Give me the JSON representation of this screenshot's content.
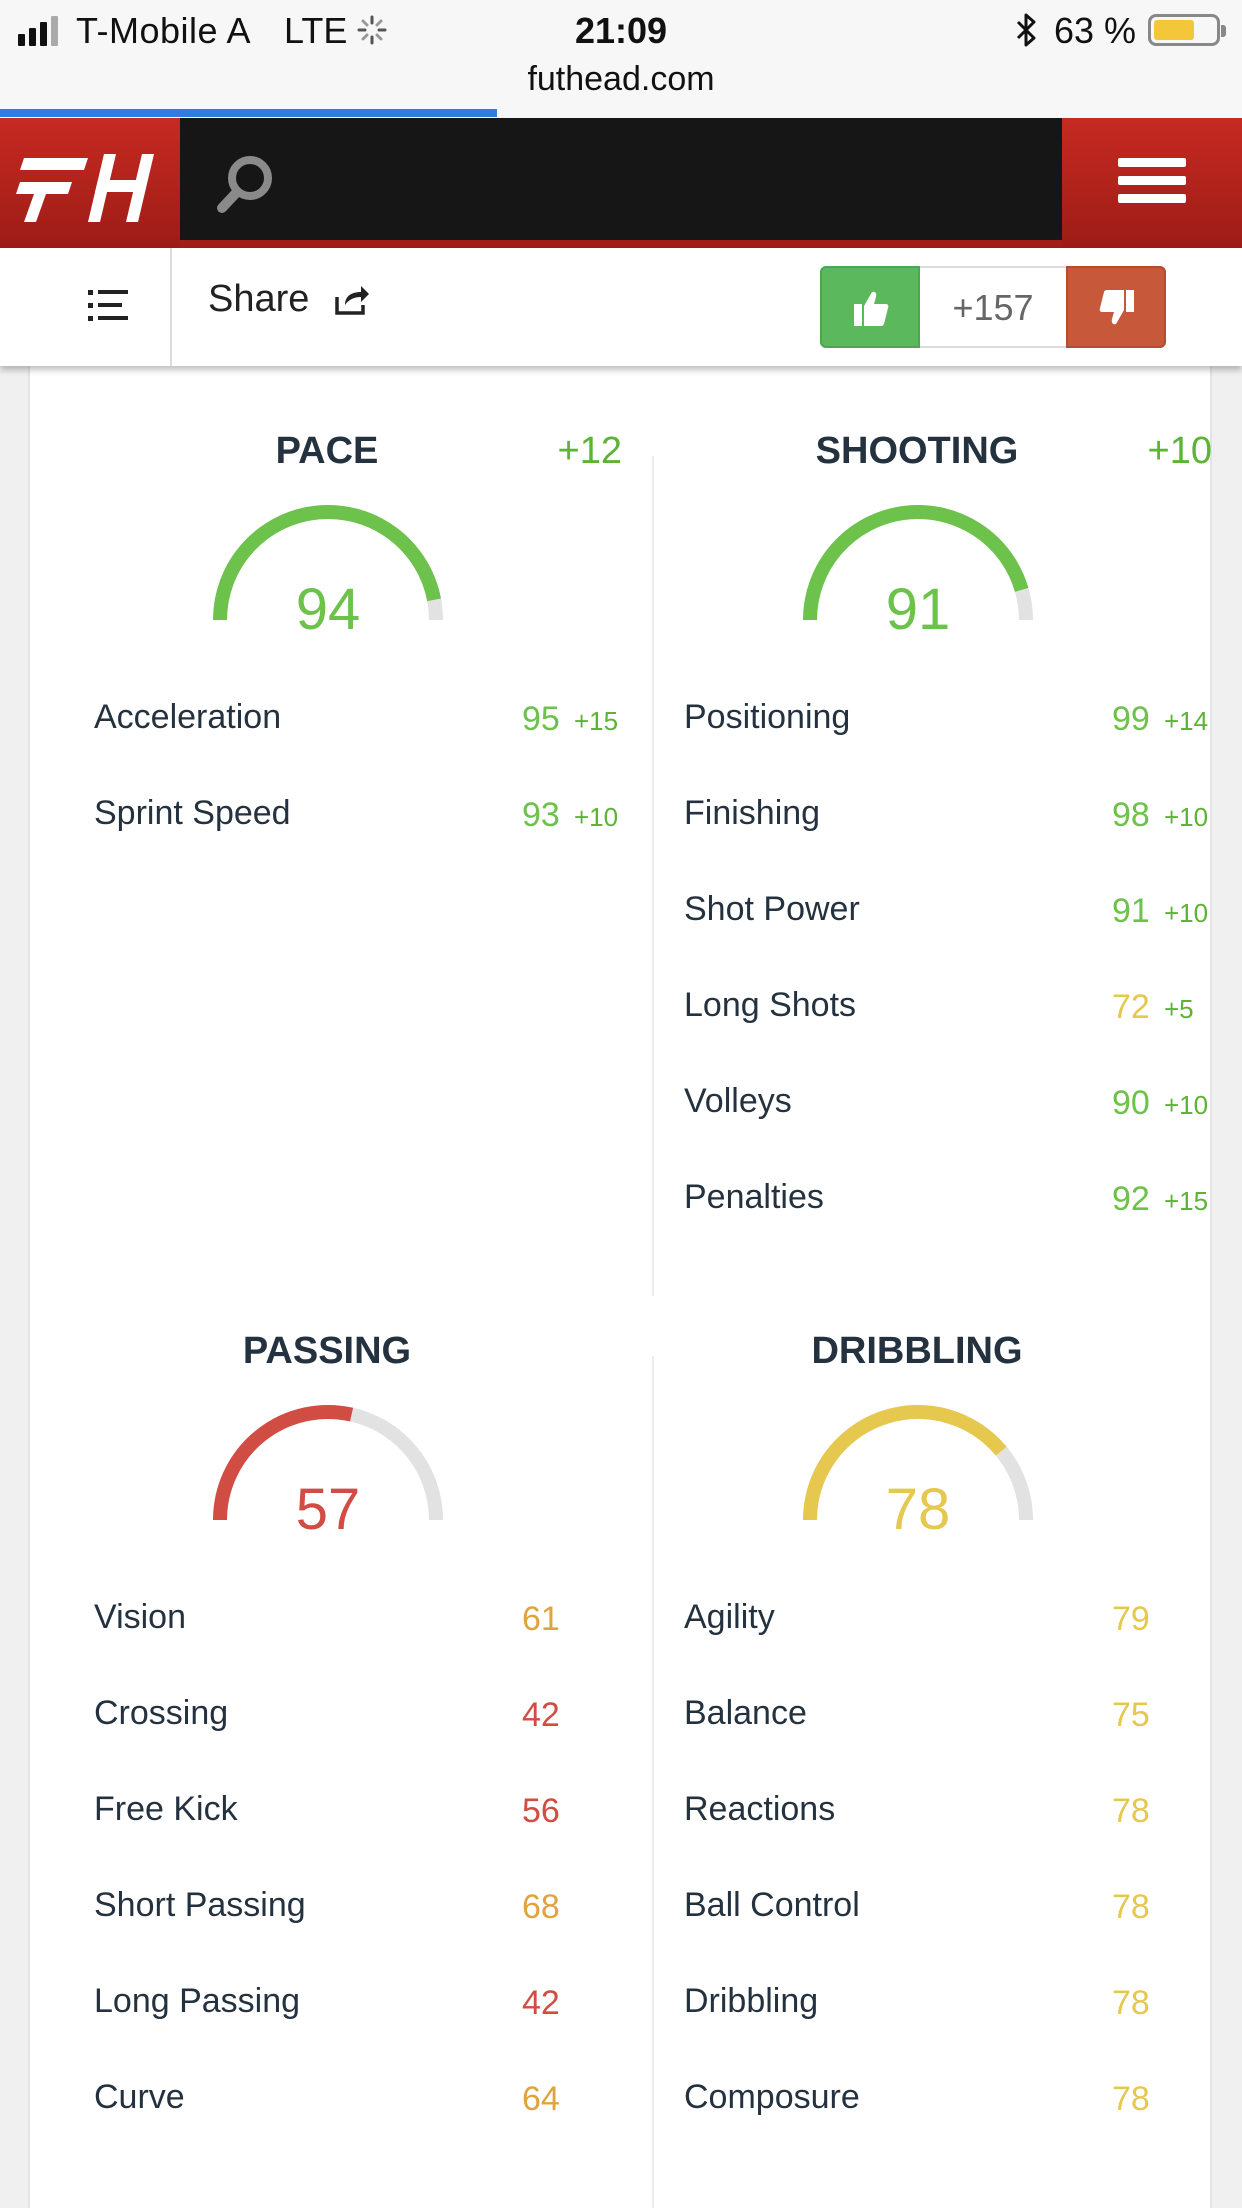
{
  "status_bar": {
    "carrier": "T-Mobile A",
    "network": "LTE",
    "time": "21:09",
    "battery_percent": "63 %",
    "url": "futhead.com",
    "page_load_progress": 0.4
  },
  "header": {
    "logo_icon": "futhead-logo-icon",
    "search_icon": "search-icon",
    "menu_icon": "hamburger-menu-icon"
  },
  "share_bar": {
    "share_label": "Share",
    "vote_count": "+157",
    "upvote_icon": "thumbs-up-icon",
    "downvote_icon": "thumbs-down-icon"
  },
  "colors": {
    "green": "#5cb335",
    "gauge_green": "#6cc24a",
    "yellow": "#e6c84e",
    "orange": "#e0a33f",
    "red": "#d14c43",
    "track": "#e2e2e2",
    "brand_red": "#c62a22",
    "dark": "#24323f"
  },
  "categories": [
    {
      "title": "PACE",
      "bonus": "+12",
      "value": "94",
      "color": "#6cc24a",
      "stats": [
        {
          "name": "Acceleration",
          "value": "95",
          "bonus": "+15",
          "color": "#6cc24a"
        },
        {
          "name": "Sprint Speed",
          "value": "93",
          "bonus": "+10",
          "color": "#6cc24a"
        }
      ]
    },
    {
      "title": "SHOOTING",
      "bonus": "+10",
      "value": "91",
      "color": "#6cc24a",
      "stats": [
        {
          "name": "Positioning",
          "value": "99",
          "bonus": "+14",
          "color": "#6cc24a"
        },
        {
          "name": "Finishing",
          "value": "98",
          "bonus": "+10",
          "color": "#6cc24a"
        },
        {
          "name": "Shot Power",
          "value": "91",
          "bonus": "+10",
          "color": "#6cc24a"
        },
        {
          "name": "Long Shots",
          "value": "72",
          "bonus": "+5",
          "color": "#e6c84e"
        },
        {
          "name": "Volleys",
          "value": "90",
          "bonus": "+10",
          "color": "#6cc24a"
        },
        {
          "name": "Penalties",
          "value": "92",
          "bonus": "+15",
          "color": "#6cc24a"
        }
      ]
    },
    {
      "title": "PASSING",
      "bonus": "",
      "value": "57",
      "color": "#d14c43",
      "stats": [
        {
          "name": "Vision",
          "value": "61",
          "bonus": "",
          "color": "#e0a33f"
        },
        {
          "name": "Crossing",
          "value": "42",
          "bonus": "",
          "color": "#d14c43"
        },
        {
          "name": "Free Kick",
          "value": "56",
          "bonus": "",
          "color": "#d14c43"
        },
        {
          "name": "Short Passing",
          "value": "68",
          "bonus": "",
          "color": "#e0a33f"
        },
        {
          "name": "Long Passing",
          "value": "42",
          "bonus": "",
          "color": "#d14c43"
        },
        {
          "name": "Curve",
          "value": "64",
          "bonus": "",
          "color": "#e0a33f"
        }
      ]
    },
    {
      "title": "DRIBBLING",
      "bonus": "",
      "value": "78",
      "color": "#e6c84e",
      "stats": [
        {
          "name": "Agility",
          "value": "79",
          "bonus": "",
          "color": "#e6c84e"
        },
        {
          "name": "Balance",
          "value": "75",
          "bonus": "",
          "color": "#e6c84e"
        },
        {
          "name": "Reactions",
          "value": "78",
          "bonus": "",
          "color": "#e6c84e"
        },
        {
          "name": "Ball Control",
          "value": "78",
          "bonus": "",
          "color": "#e6c84e"
        },
        {
          "name": "Dribbling",
          "value": "78",
          "bonus": "",
          "color": "#e6c84e"
        },
        {
          "name": "Composure",
          "value": "78",
          "bonus": "",
          "color": "#e6c84e"
        }
      ]
    }
  ]
}
